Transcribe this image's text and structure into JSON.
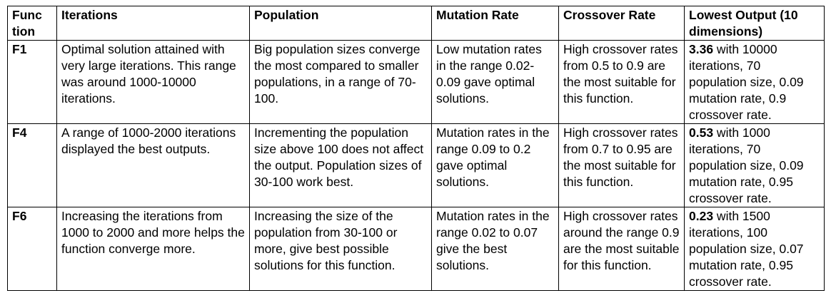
{
  "table": {
    "headers": [
      "Func tion",
      "Iterations",
      "Population",
      "Mutation Rate",
      "Crossover Rate",
      "Lowest Output (10 dimensions)"
    ],
    "rows": [
      {
        "function": "F1",
        "iterations": "Optimal solution attained with very large iterations. This range was around 1000-10000 iterations.",
        "population": "Big population sizes converge the most compared to smaller populations, in a range of 70-100.",
        "mutation_rate": "Low mutation rates in the range 0.02-0.09 gave optimal solutions.",
        "crossover_rate": "High crossover rates from 0.5 to 0.9 are the most suitable for this function.",
        "lowest_output_value": "3.36",
        "lowest_output_detail": " with 10000 iterations, 70 population size, 0.09 mutation rate, 0.9 crossover rate."
      },
      {
        "function": "F4",
        "iterations": "A range of 1000-2000 iterations displayed the best outputs.",
        "population": "Incrementing the population size above 100 does not affect the output. Population sizes of 30-100 work best.",
        "mutation_rate": "Mutation rates in the range 0.09 to 0.2 gave optimal solutions.",
        "crossover_rate": "High crossover rates from 0.7 to 0.95 are the most suitable for this function.",
        "lowest_output_value": "0.53",
        "lowest_output_detail": " with 1000 iterations, 70 population size, 0.09 mutation rate, 0.95 crossover rate."
      },
      {
        "function": "F6",
        "iterations": "Increasing the iterations from 1000 to 2000 and more helps the function converge more.",
        "population": "Increasing the size of the population from 30-100 or more, give best possible solutions for this function.",
        "mutation_rate": "Mutation rates in the range 0.02 to 0.07 give the best solutions.",
        "crossover_rate": "High crossover rates around the range 0.9 are the most suitable for this function.",
        "lowest_output_value": "0.23",
        "lowest_output_detail": " with 1500 iterations, 100 population size, 0.07 mutation rate, 0.95 crossover rate."
      }
    ]
  }
}
